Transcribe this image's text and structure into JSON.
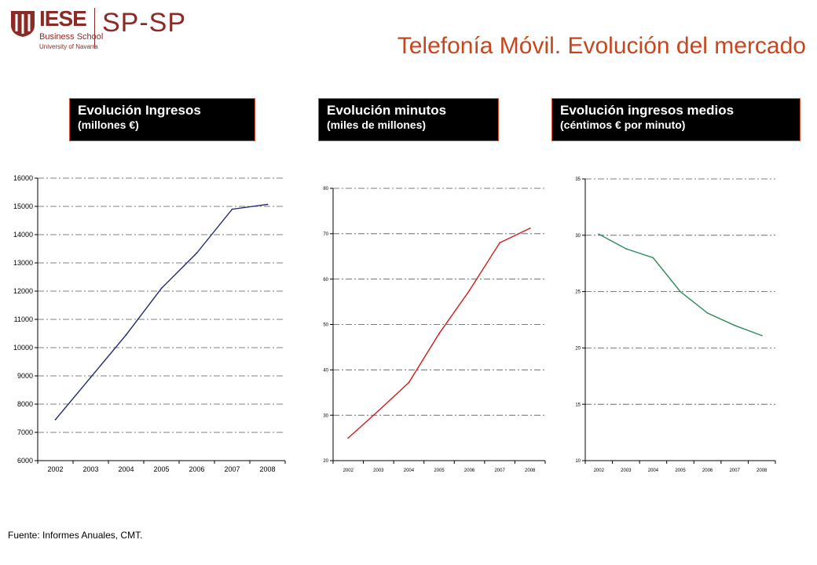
{
  "logo": {
    "name": "IESE",
    "subtitle": "Business School",
    "university": "University of Navarra",
    "division": "SP-SP"
  },
  "page_title": "Telefonía Móvil. Evolución del mercado",
  "panels": [
    {
      "title": "Evolución Ingresos",
      "subtitle": "(millones €)"
    },
    {
      "title": "Evolución minutos",
      "subtitle": "(miles de millones)"
    },
    {
      "title": "Evolución ingresos medios",
      "subtitle": "(céntimos € por minuto)"
    }
  ],
  "source": "Fuente: Informes Anuales, CMT.",
  "colors": {
    "brand": "#8c2a25",
    "title": "#c8461e",
    "header_border": "#d94f2a"
  },
  "chart_data": [
    {
      "type": "line",
      "categories": [
        "2002",
        "2003",
        "2004",
        "2005",
        "2006",
        "2007",
        "2008"
      ],
      "series": [
        {
          "color": "#1f2a6e",
          "values": [
            7450,
            8950,
            10450,
            12100,
            13350,
            14900,
            15070
          ]
        }
      ],
      "ylim": [
        6000,
        16000
      ],
      "yticks": [
        6000,
        7000,
        8000,
        9000,
        10000,
        11000,
        12000,
        13000,
        14000,
        15000,
        16000
      ],
      "grid": true
    },
    {
      "type": "line",
      "categories": [
        "2002",
        "2003",
        "2004",
        "2005",
        "2006",
        "2007",
        "2008"
      ],
      "series": [
        {
          "color": "#d01c1c",
          "values": [
            25,
            31,
            37.2,
            48,
            57.5,
            68,
            71.2
          ]
        }
      ],
      "ylim": [
        20,
        80
      ],
      "yticks": [
        20,
        30,
        40,
        50,
        60,
        70,
        80
      ],
      "grid": true
    },
    {
      "type": "line",
      "categories": [
        "2002",
        "2003",
        "2004",
        "2005",
        "2006",
        "2007",
        "2008"
      ],
      "series": [
        {
          "color": "#2e8b57",
          "values": [
            30.1,
            28.8,
            28,
            25,
            23.1,
            22,
            21.1
          ]
        }
      ],
      "ylim": [
        10,
        35
      ],
      "yticks": [
        10,
        15,
        20,
        25,
        30,
        35
      ],
      "grid": true
    }
  ]
}
